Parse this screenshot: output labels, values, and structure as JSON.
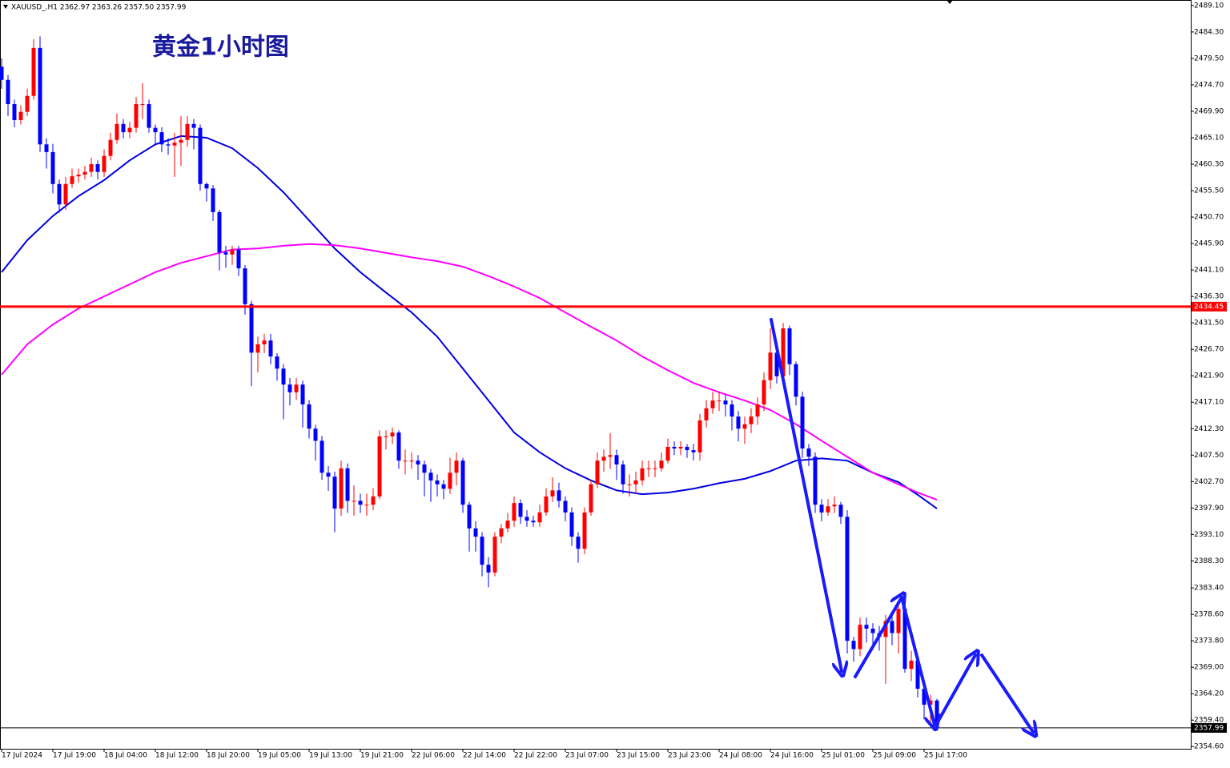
{
  "chart_data": {
    "type": "candlestick",
    "header": "XAUUSD_,H1 2362.97 2363.26 2357.50 2357.99",
    "title": "黄金1小时图",
    "up_color": "#ff0000",
    "down_color": "#0000ff",
    "categories": [
      "17 Jul 2024",
      null,
      null,
      null,
      null,
      null,
      null,
      null,
      "17 Jul 19:00",
      null,
      null,
      null,
      null,
      null,
      null,
      null,
      "18 Jul 04:00",
      null,
      null,
      null,
      null,
      null,
      null,
      null,
      "18 Jul 12:00",
      null,
      null,
      null,
      null,
      null,
      null,
      null,
      "18 Jul 20:00",
      null,
      null,
      null,
      null,
      null,
      null,
      null,
      "19 Jul 05:00",
      null,
      null,
      null,
      null,
      null,
      null,
      null,
      "19 Jul 13:00",
      null,
      null,
      null,
      null,
      null,
      null,
      null,
      "19 Jul 21:00",
      null,
      null,
      null,
      null,
      null,
      null,
      null,
      "22 Jul 06:00",
      null,
      null,
      null,
      null,
      null,
      null,
      null,
      "22 Jul 14:00",
      null,
      null,
      null,
      null,
      null,
      null,
      null,
      "22 Jul 22:00",
      null,
      null,
      null,
      null,
      null,
      null,
      null,
      "23 Jul 07:00",
      null,
      null,
      null,
      null,
      null,
      null,
      null,
      "23 Jul 15:00",
      null,
      null,
      null,
      null,
      null,
      null,
      null,
      "23 Jul 23:00",
      null,
      null,
      null,
      null,
      null,
      null,
      null,
      "24 Jul 08:00",
      null,
      null,
      null,
      null,
      null,
      null,
      null,
      "24 Jul 16:00",
      null,
      null,
      null,
      null,
      null,
      null,
      null,
      "25 Jul 01:00",
      null,
      null,
      null,
      null,
      null,
      null,
      null,
      "25 Jul 09:00",
      null,
      null,
      null,
      null,
      null,
      null,
      null,
      "25 Jul 17:00",
      null,
      null
    ],
    "open": [
      2478.0,
      2475.6,
      2471.2,
      2468.3,
      2469.8,
      2472.7,
      2481.4,
      2463.9,
      2462.5,
      2456.7,
      2453.0,
      2456.7,
      2458.1,
      2458.4,
      2458.9,
      2460.3,
      2458.9,
      2461.8,
      2464.7,
      2467.6,
      2466.1,
      2466.9,
      2471.2,
      2471.2,
      2466.9,
      2466.1,
      2463.9,
      2463.7,
      2464.2,
      2464.7,
      2467.6,
      2466.9,
      2456.7,
      2455.9,
      2451.6,
      2444.3,
      2443.9,
      2444.8,
      2441.4,
      2434.9,
      2426.1,
      2427.6,
      2428.3,
      2425.4,
      2423.2,
      2420.3,
      2418.9,
      2420.3,
      2416.7,
      2412.3,
      2410.1,
      2404.3,
      2403.6,
      2397.8,
      2405.1,
      2399.2,
      2399.2,
      2398.5,
      2398.5,
      2400.0,
      2410.9,
      2410.9,
      2411.6,
      2406.5,
      2406.5,
      2406.5,
      2405.8,
      2404.3,
      2402.9,
      2402.2,
      2401.4,
      2404.3,
      2406.5,
      2398.5,
      2394.2,
      2392.7,
      2387.6,
      2386.2,
      2392.7,
      2394.2,
      2395.6,
      2398.8,
      2396.3,
      2395.6,
      2395.3,
      2397.1,
      2400.0,
      2401.1,
      2399.2,
      2397.1,
      2392.7,
      2390.5,
      2397.1,
      2402.2,
      2406.5,
      2407.2,
      2407.5,
      2405.8,
      2402.2,
      2402.2,
      2402.9,
      2405.1,
      2405.1,
      2405.1,
      2406.5,
      2409.0,
      2408.7,
      2409.0,
      2408.4,
      2408.0,
      2413.8,
      2416.0,
      2417.4,
      2417.4,
      2416.7,
      2414.5,
      2412.3,
      2413.1,
      2414.5,
      2416.7,
      2421.1,
      2426.1,
      2421.8,
      2430.5,
      2424.0,
      2418.1,
      2408.7,
      2407.2,
      2398.5,
      2397.1,
      2398.2,
      2398.5,
      2396.3,
      2373.8,
      2372.3,
      2376.7,
      2376.0,
      2375.2,
      2374.5,
      2377.4,
      2375.2,
      2379.6,
      2368.7,
      2370.2,
      2365.1,
      2362.2,
      2362.97
    ],
    "high": [
      2479.5,
      2476.5,
      2472.0,
      2471.0,
      2474.0,
      2483.0,
      2483.5,
      2465.0,
      2464.0,
      2457.5,
      2458.0,
      2459.5,
      2459.5,
      2460.0,
      2461.5,
      2461.0,
      2463.0,
      2466.0,
      2469.5,
      2468.5,
      2468.0,
      2472.5,
      2475.0,
      2472.0,
      2467.5,
      2467.0,
      2465.0,
      2466.0,
      2469.0,
      2469.0,
      2468.5,
      2467.5,
      2457.0,
      2456.5,
      2452.0,
      2445.5,
      2445.5,
      2445.5,
      2442.0,
      2435.5,
      2429.0,
      2429.5,
      2429.5,
      2426.0,
      2424.0,
      2421.5,
      2421.5,
      2421.0,
      2417.5,
      2413.0,
      2411.0,
      2405.5,
      2404.5,
      2406.5,
      2406.0,
      2402.0,
      2400.5,
      2400.5,
      2401.5,
      2412.0,
      2412.0,
      2412.5,
      2412.0,
      2408.5,
      2408.0,
      2407.5,
      2406.5,
      2405.0,
      2404.0,
      2403.0,
      2407.0,
      2408.0,
      2407.0,
      2399.0,
      2395.5,
      2393.5,
      2389.0,
      2393.5,
      2395.0,
      2397.0,
      2400.0,
      2399.5,
      2397.5,
      2396.5,
      2398.5,
      2401.5,
      2403.5,
      2402.5,
      2400.0,
      2398.0,
      2393.5,
      2398.0,
      2403.0,
      2408.0,
      2408.5,
      2411.5,
      2408.5,
      2406.5,
      2404.0,
      2404.5,
      2406.5,
      2406.5,
      2406.5,
      2408.0,
      2410.5,
      2410.0,
      2410.0,
      2409.5,
      2409.5,
      2415.0,
      2417.5,
      2419.0,
      2419.0,
      2418.5,
      2417.5,
      2415.5,
      2414.5,
      2416.0,
      2418.0,
      2422.5,
      2430.5,
      2427.5,
      2431.5,
      2431.0,
      2424.5,
      2419.0,
      2409.5,
      2408.0,
      2399.5,
      2399.5,
      2400.0,
      2399.0,
      2397.5,
      2374.5,
      2378.0,
      2378.0,
      2377.0,
      2376.5,
      2378.5,
      2379.0,
      2381.0,
      2380.5,
      2372.0,
      2371.0,
      2366.0,
      2364.0,
      2363.26
    ],
    "low": [
      2474.0,
      2469.0,
      2467.0,
      2467.5,
      2469.0,
      2472.0,
      2462.5,
      2459.5,
      2455.0,
      2451.5,
      2452.0,
      2456.0,
      2457.0,
      2457.5,
      2458.0,
      2457.5,
      2458.0,
      2461.0,
      2464.0,
      2465.0,
      2465.0,
      2466.0,
      2468.5,
      2466.0,
      2464.0,
      2462.5,
      2462.0,
      2458.0,
      2460.0,
      2463.5,
      2463.0,
      2455.5,
      2453.5,
      2450.0,
      2441.0,
      2441.5,
      2442.0,
      2440.0,
      2433.0,
      2420.0,
      2422.5,
      2426.0,
      2424.0,
      2421.0,
      2414.0,
      2416.5,
      2417.5,
      2412.5,
      2410.5,
      2406.5,
      2403.0,
      2401.0,
      2393.5,
      2396.5,
      2397.0,
      2396.5,
      2397.0,
      2396.5,
      2397.5,
      2399.5,
      2408.5,
      2409.5,
      2405.0,
      2404.0,
      2405.0,
      2403.0,
      2400.0,
      2399.0,
      2400.0,
      2399.5,
      2400.5,
      2402.0,
      2397.0,
      2390.0,
      2390.0,
      2385.5,
      2383.5,
      2385.5,
      2391.5,
      2393.5,
      2394.5,
      2395.0,
      2394.5,
      2394.5,
      2394.5,
      2396.5,
      2399.0,
      2398.0,
      2395.5,
      2391.0,
      2388.0,
      2389.5,
      2396.5,
      2401.5,
      2404.5,
      2405.0,
      2403.0,
      2400.5,
      2400.0,
      2400.5,
      2402.0,
      2403.5,
      2403.5,
      2404.5,
      2406.0,
      2407.5,
      2407.5,
      2407.0,
      2406.5,
      2406.5,
      2412.5,
      2415.0,
      2415.5,
      2414.5,
      2412.0,
      2410.0,
      2409.5,
      2411.5,
      2413.0,
      2415.5,
      2419.5,
      2420.5,
      2421.0,
      2422.0,
      2416.5,
      2407.0,
      2405.5,
      2397.0,
      2395.5,
      2396.5,
      2397.0,
      2395.0,
      2371.5,
      2370.0,
      2371.0,
      2373.5,
      2373.0,
      2372.0,
      2366.0,
      2373.0,
      2371.5,
      2368.0,
      2366.5,
      2363.5,
      2359.5,
      2359.0,
      2357.5
    ],
    "close": [
      2475.6,
      2471.2,
      2468.3,
      2469.8,
      2472.7,
      2481.4,
      2463.9,
      2462.5,
      2456.7,
      2453.0,
      2456.7,
      2458.1,
      2458.4,
      2458.9,
      2460.3,
      2458.9,
      2461.8,
      2464.7,
      2467.6,
      2466.1,
      2466.9,
      2471.2,
      2471.2,
      2466.9,
      2466.1,
      2463.9,
      2463.7,
      2464.2,
      2464.7,
      2467.6,
      2466.9,
      2456.7,
      2455.9,
      2451.6,
      2444.3,
      2443.9,
      2444.8,
      2441.4,
      2434.9,
      2426.1,
      2427.6,
      2428.3,
      2425.4,
      2423.2,
      2420.3,
      2418.9,
      2420.3,
      2416.7,
      2412.3,
      2410.1,
      2404.3,
      2403.6,
      2397.8,
      2405.1,
      2399.2,
      2399.2,
      2398.5,
      2398.5,
      2400.0,
      2410.9,
      2410.9,
      2411.6,
      2406.5,
      2406.5,
      2406.5,
      2405.8,
      2404.3,
      2402.9,
      2402.2,
      2401.4,
      2404.3,
      2406.5,
      2398.5,
      2394.2,
      2392.7,
      2387.6,
      2386.2,
      2392.7,
      2394.2,
      2395.6,
      2398.8,
      2396.3,
      2395.6,
      2395.3,
      2397.1,
      2400.0,
      2401.1,
      2399.2,
      2397.1,
      2392.7,
      2390.5,
      2397.1,
      2402.2,
      2406.5,
      2407.2,
      2407.5,
      2405.8,
      2402.2,
      2402.2,
      2402.9,
      2405.1,
      2405.1,
      2405.1,
      2406.5,
      2409.0,
      2408.7,
      2409.0,
      2408.4,
      2408.0,
      2413.8,
      2416.0,
      2417.4,
      2417.4,
      2416.7,
      2414.5,
      2412.3,
      2413.1,
      2414.5,
      2416.7,
      2421.1,
      2426.1,
      2421.8,
      2430.5,
      2424.0,
      2418.1,
      2408.7,
      2407.2,
      2398.5,
      2397.1,
      2398.2,
      2398.5,
      2396.3,
      2373.8,
      2372.3,
      2376.7,
      2376.0,
      2375.2,
      2374.5,
      2377.4,
      2375.2,
      2379.6,
      2368.7,
      2370.2,
      2365.1,
      2362.2,
      2362.97,
      2357.99
    ],
    "lines": [
      {
        "color": "#0000e0",
        "x": [
          0,
          4,
          8,
          12,
          16,
          20,
          24,
          28,
          32,
          36,
          40,
          44,
          48,
          52,
          56,
          60,
          64,
          68,
          72,
          76,
          80,
          84,
          88,
          92,
          96,
          100,
          104,
          108,
          112,
          116,
          120,
          124,
          128,
          132,
          136,
          140,
          143,
          146
        ],
        "values": [
          2440.7,
          2446.5,
          2450.9,
          2454.5,
          2457.4,
          2461.0,
          2463.9,
          2465.4,
          2465.1,
          2463.2,
          2459.6,
          2455.2,
          2450.1,
          2445.0,
          2440.7,
          2437.0,
          2433.4,
          2429.0,
          2423.2,
          2417.4,
          2411.6,
          2408.0,
          2405.1,
          2402.9,
          2401.1,
          2400.4,
          2400.7,
          2401.4,
          2402.4,
          2403.2,
          2404.6,
          2406.5,
          2406.9,
          2406.5,
          2404.3,
          2402.6,
          2400.3,
          2397.8
        ]
      },
      {
        "color": "#ff00ff",
        "x": [
          0,
          4,
          8,
          12,
          16,
          20,
          24,
          28,
          32,
          36,
          40,
          44,
          48,
          52,
          56,
          60,
          64,
          68,
          72,
          76,
          80,
          84,
          88,
          92,
          96,
          100,
          104,
          108,
          112,
          116,
          120,
          124,
          128,
          132,
          136,
          140,
          143,
          146
        ],
        "values": [
          2422.1,
          2427.6,
          2431.2,
          2434.1,
          2436.3,
          2438.5,
          2440.7,
          2442.4,
          2443.6,
          2444.8,
          2445.0,
          2445.5,
          2445.8,
          2445.6,
          2445.0,
          2444.2,
          2443.4,
          2442.7,
          2441.7,
          2440.0,
          2438.1,
          2436.0,
          2433.4,
          2430.8,
          2428.3,
          2425.4,
          2422.9,
          2420.6,
          2418.9,
          2417.4,
          2415.7,
          2413.1,
          2410.1,
          2407.2,
          2404.3,
          2402.2,
          2400.7,
          2399.4
        ]
      }
    ],
    "hlines": [
      {
        "value": 2434.45,
        "color": "#ff0000"
      }
    ],
    "price_line": {
      "value": 2357.99,
      "color": "#000000"
    },
    "ylim": [
      2354.2,
      2490.1
    ],
    "yticks": [
      {
        "value": 2489.1,
        "label": "2489.10"
      },
      {
        "value": 2484.3,
        "label": "2484.30"
      },
      {
        "value": 2479.5,
        "label": "2479.50"
      },
      {
        "value": 2474.7,
        "label": "2474.70"
      },
      {
        "value": 2469.9,
        "label": "2469.90"
      },
      {
        "value": 2465.1,
        "label": "2465.10"
      },
      {
        "value": 2460.3,
        "label": "2460.30"
      },
      {
        "value": 2455.5,
        "label": "2455.50"
      },
      {
        "value": 2450.7,
        "label": "2450.70"
      },
      {
        "value": 2445.9,
        "label": "2445.90"
      },
      {
        "value": 2441.1,
        "label": "2441.10"
      },
      {
        "value": 2436.3,
        "label": "2436.30"
      },
      {
        "value": 2431.5,
        "label": "2431.50"
      },
      {
        "value": 2426.7,
        "label": "2426.70"
      },
      {
        "value": 2421.9,
        "label": "2421.90"
      },
      {
        "value": 2417.1,
        "label": "2417.10"
      },
      {
        "value": 2412.3,
        "label": "2412.30"
      },
      {
        "value": 2407.5,
        "label": "2407.50"
      },
      {
        "value": 2402.7,
        "label": "2402.70"
      },
      {
        "value": 2397.9,
        "label": "2397.90"
      },
      {
        "value": 2393.1,
        "label": "2393.10"
      },
      {
        "value": 2388.3,
        "label": "2388.30"
      },
      {
        "value": 2383.4,
        "label": "2383.40"
      },
      {
        "value": 2378.6,
        "label": "2378.60"
      },
      {
        "value": 2373.8,
        "label": "2373.80"
      },
      {
        "value": 2369.0,
        "label": "2369.00"
      },
      {
        "value": 2364.2,
        "label": "2364.20"
      },
      {
        "value": 2359.4,
        "label": "2359.40"
      },
      {
        "value": 2354.6,
        "label": "2354.60"
      }
    ]
  }
}
